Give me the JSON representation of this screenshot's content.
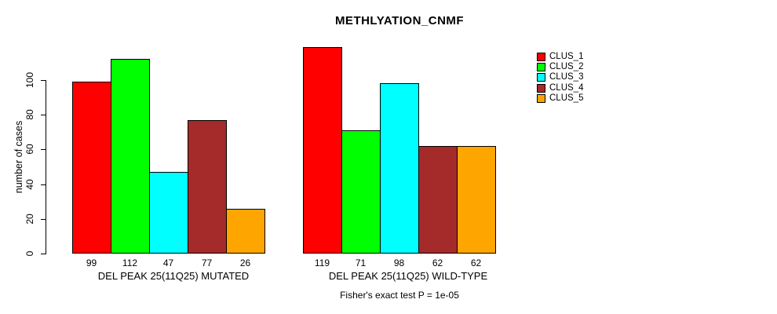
{
  "chart_data": {
    "type": "bar",
    "title": "METHLYATION_CNMF",
    "ylabel": "number of cases",
    "xlabel": "",
    "annotation": "Fisher's exact test P = 1e-05",
    "ylim": [
      0,
      119
    ],
    "yticks": [
      0,
      20,
      40,
      60,
      80,
      100
    ],
    "grid": false,
    "bar_value_labels_shown": true,
    "legend_position": "right-outside",
    "categories": [
      "DEL PEAK 25(11Q25) MUTATED",
      "DEL PEAK 25(11Q25) WILD-TYPE"
    ],
    "series": [
      {
        "name": "CLUS_1",
        "color": "#FF0000",
        "values": [
          99,
          119
        ]
      },
      {
        "name": "CLUS_2",
        "color": "#00FF00",
        "values": [
          112,
          71
        ]
      },
      {
        "name": "CLUS_3",
        "color": "#00FFFF",
        "values": [
          47,
          98
        ]
      },
      {
        "name": "CLUS_4",
        "color": "#A52A2A",
        "values": [
          77,
          62
        ]
      },
      {
        "name": "CLUS_5",
        "color": "#FFA500",
        "values": [
          26,
          62
        ]
      }
    ]
  }
}
